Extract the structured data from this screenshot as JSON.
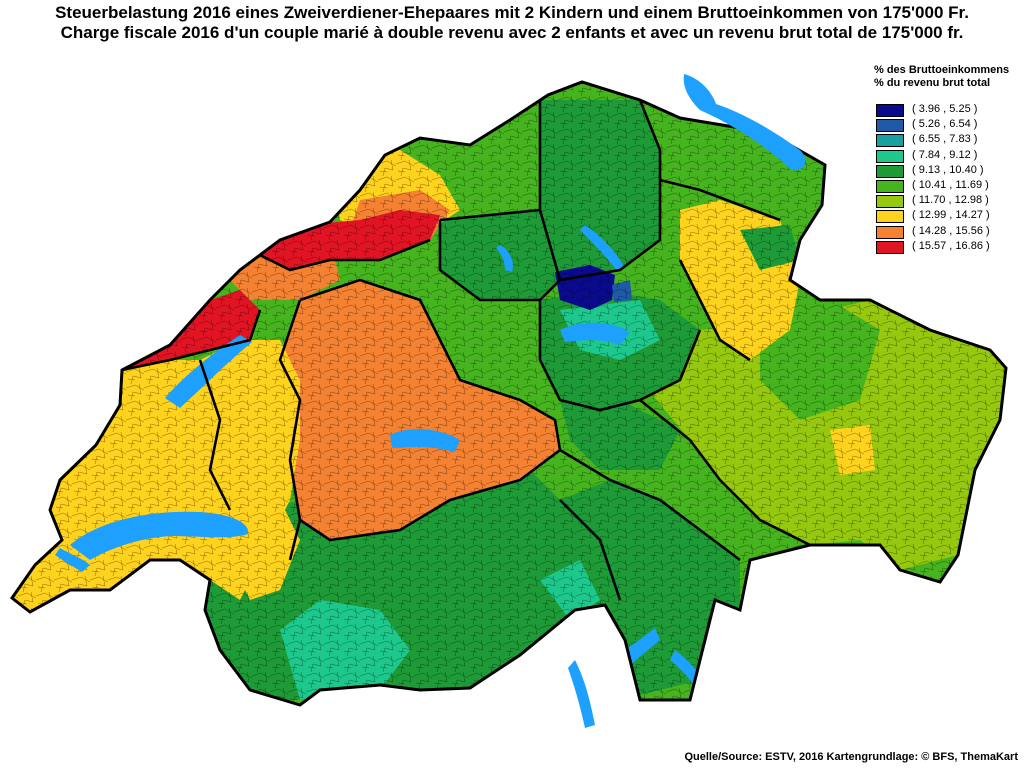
{
  "title_de": "Steuerbelastung 2016 eines Zweiverdiener-Ehepaares mit 2 Kindern und einem Bruttoeinkommen von 175'000 Fr.",
  "title_fr": "Charge fiscale 2016 d'un couple marié à double revenu avec 2 enfants et avec un revenu brut total de 175'000 fr.",
  "legend": {
    "header_de": "% des Bruttoeinkommens",
    "header_fr": "% du revenu brut total",
    "items": [
      {
        "label": "( 3.96 , 5.25 )",
        "color": "#0a0a8c"
      },
      {
        "label": "( 5.26 , 6.54 )",
        "color": "#1e5aa8"
      },
      {
        "label": "( 6.55 , 7.83 )",
        "color": "#1aa0a0"
      },
      {
        "label": "( 7.84 , 9.12 )",
        "color": "#1ec88c"
      },
      {
        "label": "( 9.13 , 10.40 )",
        "color": "#1e9b37"
      },
      {
        "label": "( 10.41 , 11.69 )",
        "color": "#46b41e"
      },
      {
        "label": "( 11.70 , 12.98 )",
        "color": "#96c80f"
      },
      {
        "label": "( 12.99 , 14.27 )",
        "color": "#ffd21e"
      },
      {
        "label": "( 14.28 , 15.56 )",
        "color": "#f58232"
      },
      {
        "label": "( 15.57 , 16.86 )",
        "color": "#e11423"
      }
    ]
  },
  "water_color": "#1ea0ff",
  "source": "Quelle/Source: ESTV, 2016 Kartengrundlage: © BFS, ThemaKart"
}
